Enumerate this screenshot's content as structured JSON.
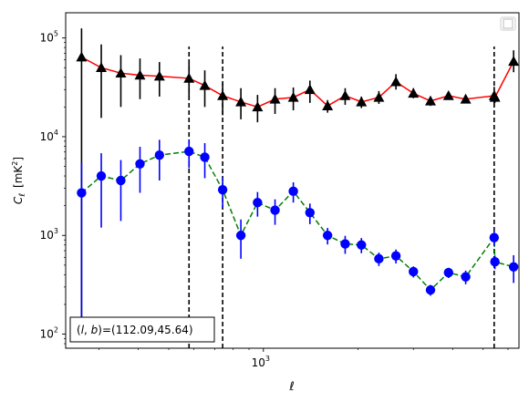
{
  "chart_data": {
    "type": "line",
    "xscale": "log",
    "yscale": "log",
    "xlabel": "ℓ",
    "ylabel_main": "C",
    "ylabel_sub": "ℓ",
    "ylabel_unit": "[mK",
    "ylabel_unit_sup": "2",
    "ylabel_unit_close": "]",
    "xlim": [
      235,
      6500
    ],
    "ylim": [
      72,
      180000
    ],
    "xticks": [
      {
        "value": 1000,
        "label": "10",
        "sup": "3"
      }
    ],
    "yticks": [
      {
        "value": 100,
        "label": "10",
        "sup": "2"
      },
      {
        "value": 1000,
        "label": "10",
        "sup": "3"
      },
      {
        "value": 10000,
        "label": "10",
        "sup": "4"
      },
      {
        "value": 100000,
        "label": "10",
        "sup": "5"
      }
    ],
    "annotation": "(l, b)=(112.09,45.64)",
    "annotation_parts": {
      "open": "(",
      "l": "l",
      "sep": ", ",
      "b": "b",
      "close": ")=(112.09,45.64)"
    },
    "legend_position": "upper-right",
    "vlines": [
      {
        "x": 580,
        "ymin": 72,
        "ymax": 82000
      },
      {
        "x": 742,
        "ymin": 72,
        "ymax": 82000
      },
      {
        "x": 5420,
        "ymin": 72,
        "ymax": 82000
      }
    ],
    "series": [
      {
        "marker": "triangle",
        "line_color": "#ff0000",
        "line_style": "solid",
        "marker_color": "#000000",
        "errbar_color": "#000000",
        "points": [
          {
            "x": 264,
            "y": 64000,
            "lo": 90,
            "hi": 125000
          },
          {
            "x": 305,
            "y": 50000,
            "lo": 15500,
            "hi": 86000
          },
          {
            "x": 352,
            "y": 44000,
            "lo": 20000,
            "hi": 67000
          },
          {
            "x": 405,
            "y": 42000,
            "lo": 24000,
            "hi": 62000
          },
          {
            "x": 467,
            "y": 41000,
            "lo": 25500,
            "hi": 57000
          },
          {
            "x": 580,
            "y": 39000,
            "lo": 24000,
            "hi": 56000
          },
          {
            "x": 651,
            "y": 33000,
            "lo": 20000,
            "hi": 47000
          },
          {
            "x": 742,
            "y": 26000,
            "lo": 16500,
            "hi": 35000
          },
          {
            "x": 848,
            "y": 22500,
            "lo": 15000,
            "hi": 31000
          },
          {
            "x": 958,
            "y": 20000,
            "lo": 14000,
            "hi": 26500
          },
          {
            "x": 1089,
            "y": 24000,
            "lo": 17000,
            "hi": 31000
          },
          {
            "x": 1245,
            "y": 25000,
            "lo": 18500,
            "hi": 31500
          },
          {
            "x": 1406,
            "y": 30000,
            "lo": 22000,
            "hi": 37000
          },
          {
            "x": 1600,
            "y": 20500,
            "lo": 17500,
            "hi": 23500
          },
          {
            "x": 1820,
            "y": 26000,
            "lo": 21000,
            "hi": 31000
          },
          {
            "x": 2050,
            "y": 22500,
            "lo": 19500,
            "hi": 25500
          },
          {
            "x": 2330,
            "y": 25000,
            "lo": 21500,
            "hi": 29000
          },
          {
            "x": 2640,
            "y": 36000,
            "lo": 30000,
            "hi": 43000
          },
          {
            "x": 3000,
            "y": 27500,
            "lo": 24500,
            "hi": 31000
          },
          {
            "x": 3400,
            "y": 23000,
            "lo": 20500,
            "hi": 25500
          },
          {
            "x": 3880,
            "y": 26000,
            "lo": 24000,
            "hi": 28500
          },
          {
            "x": 4400,
            "y": 24000,
            "lo": 22000,
            "hi": 26500
          },
          {
            "x": 5420,
            "y": 26000,
            "lo": 20000,
            "hi": 32000
          },
          {
            "x": 5450,
            "y": 25000,
            "lo": 22000,
            "hi": 28500
          },
          {
            "x": 6250,
            "y": 58000,
            "lo": 45000,
            "hi": 75000
          }
        ]
      },
      {
        "marker": "circle",
        "line_color": "#008000",
        "line_style": "dashed",
        "marker_color": "#0000ff",
        "errbar_color": "#0000ff",
        "points": [
          {
            "x": 264,
            "y": 2700,
            "lo": 90,
            "hi": 5500
          },
          {
            "x": 305,
            "y": 4000,
            "lo": 1200,
            "hi": 6800
          },
          {
            "x": 352,
            "y": 3600,
            "lo": 1400,
            "hi": 5800
          },
          {
            "x": 405,
            "y": 5300,
            "lo": 2700,
            "hi": 7900
          },
          {
            "x": 467,
            "y": 6500,
            "lo": 3600,
            "hi": 9300
          },
          {
            "x": 580,
            "y": 7100,
            "lo": 4800,
            "hi": 9400
          },
          {
            "x": 651,
            "y": 6200,
            "lo": 3800,
            "hi": 8600
          },
          {
            "x": 742,
            "y": 2900,
            "lo": 1900,
            "hi": 3900
          },
          {
            "x": 848,
            "y": 1000,
            "lo": 580,
            "hi": 1450
          },
          {
            "x": 958,
            "y": 2150,
            "lo": 1550,
            "hi": 2750
          },
          {
            "x": 1089,
            "y": 1800,
            "lo": 1280,
            "hi": 2320
          },
          {
            "x": 1245,
            "y": 2800,
            "lo": 2150,
            "hi": 3450
          },
          {
            "x": 1406,
            "y": 1700,
            "lo": 1300,
            "hi": 2100
          },
          {
            "x": 1600,
            "y": 1000,
            "lo": 810,
            "hi": 1190
          },
          {
            "x": 1820,
            "y": 820,
            "lo": 650,
            "hi": 990
          },
          {
            "x": 2050,
            "y": 800,
            "lo": 660,
            "hi": 940
          },
          {
            "x": 2330,
            "y": 580,
            "lo": 490,
            "hi": 670
          },
          {
            "x": 2640,
            "y": 620,
            "lo": 520,
            "hi": 720
          },
          {
            "x": 3000,
            "y": 430,
            "lo": 375,
            "hi": 485
          },
          {
            "x": 3400,
            "y": 280,
            "lo": 245,
            "hi": 315
          },
          {
            "x": 3880,
            "y": 420,
            "lo": 370,
            "hi": 470
          },
          {
            "x": 4400,
            "y": 380,
            "lo": 320,
            "hi": 440
          },
          {
            "x": 5420,
            "y": 950,
            "lo": 780,
            "hi": 1120
          },
          {
            "x": 5450,
            "y": 540,
            "lo": 455,
            "hi": 625
          },
          {
            "x": 6250,
            "y": 480,
            "lo": 330,
            "hi": 630
          }
        ]
      }
    ]
  }
}
